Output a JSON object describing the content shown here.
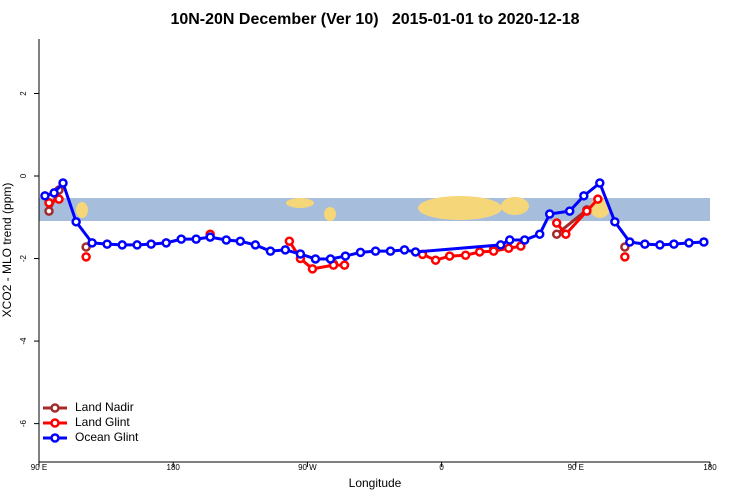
{
  "chart_data": {
    "type": "line",
    "title": "10N-20N December (Ver 10)   2015-01-01 to 2020-12-18",
    "x_label": "Longitude",
    "y_label": "XCO2 - MLO trend (ppm)",
    "xlim": [
      90,
      540
    ],
    "xticks": [
      {
        "value": 90,
        "label": "90 E"
      },
      180,
      {
        "value": 270,
        "label": "90 W"
      },
      {
        "value": 360,
        "label": "0"
      },
      {
        "value": 450,
        "label": "90 E"
      },
      {
        "value": 540,
        "label": "180"
      }
    ],
    "ylim": [
      -6.93,
      3.32
    ],
    "yticks": [
      -6,
      -4,
      -2,
      0,
      2
    ],
    "legend": "bottom-left",
    "series": [
      {
        "name": "Land Nadir",
        "color": "#a52a2a",
        "x": [
          96.7,
          103.4,
          null,
          121.6,
          null,
          287.5,
          null,
          394.9,
          null,
          437.2,
          457.4,
          null,
          482.9
        ],
        "values": [
          -0.85,
          -0.34,
          null,
          -1.72,
          null,
          -2.13,
          null,
          -1.77,
          null,
          -1.41,
          -0.82,
          null,
          -1.72
        ]
      },
      {
        "name": "Land Glint",
        "color": "#ff0000",
        "x": [
          96.7,
          103.4,
          null,
          121.6,
          null,
          204.8,
          null,
          257.9,
          265.3,
          273.4,
          287.5,
          294.9,
          null,
          347.2,
          356.0,
          365.4,
          376.1,
          385.5,
          394.9,
          405.0,
          413.1,
          null,
          437.2,
          443.3,
          457.4,
          464.8,
          null,
          482.9
        ],
        "values": [
          -0.65,
          -0.56,
          null,
          -1.96,
          null,
          -1.41,
          null,
          -1.58,
          -2.0,
          -2.25,
          -2.16,
          -2.16,
          null,
          -1.9,
          -2.04,
          -1.94,
          -1.92,
          -1.84,
          -1.82,
          -1.75,
          -1.7,
          null,
          -1.14,
          -1.41,
          -0.85,
          -0.56,
          null,
          -1.96
        ]
      },
      {
        "name": "Ocean Glint",
        "color": "#0000ff",
        "x": [
          94.0,
          100.1,
          106.1,
          114.9,
          125.6,
          135.7,
          145.8,
          155.8,
          165.2,
          175.3,
          185.4,
          195.4,
          204.8,
          215.6,
          225.0,
          235.1,
          245.2,
          255.2,
          265.3,
          275.4,
          285.5,
          295.5,
          305.6,
          315.7,
          325.7,
          335.1,
          342.5,
          399.6,
          405.7,
          415.7,
          425.8,
          432.5,
          445.9,
          455.4,
          466.1,
          476.2,
          486.2,
          496.3,
          506.4,
          515.8,
          525.9,
          535.9
        ],
        "values": [
          -0.48,
          -0.41,
          -0.17,
          -1.11,
          -1.62,
          -1.65,
          -1.67,
          -1.67,
          -1.65,
          -1.62,
          -1.53,
          -1.53,
          -1.48,
          -1.55,
          -1.58,
          -1.67,
          -1.82,
          -1.79,
          -1.89,
          -2.01,
          -2.01,
          -1.94,
          -1.85,
          -1.82,
          -1.82,
          -1.79,
          -1.84,
          -1.67,
          -1.55,
          -1.55,
          -1.41,
          -0.92,
          -0.85,
          -0.48,
          -0.17,
          -1.11,
          -1.6,
          -1.65,
          -1.67,
          -1.65,
          -1.62,
          -1.6
        ]
      }
    ]
  }
}
